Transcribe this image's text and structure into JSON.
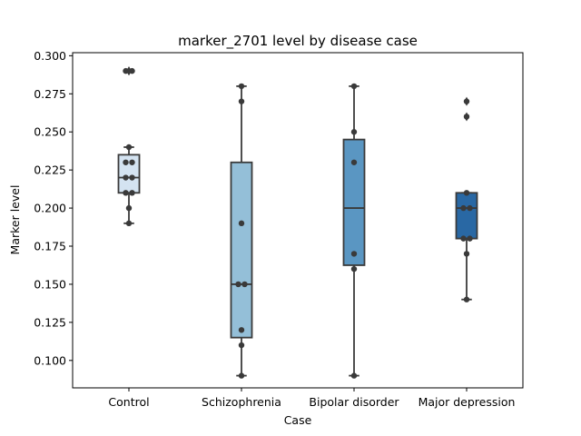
{
  "chart_data": {
    "type": "box",
    "title": "marker_2701 level by disease case",
    "xlabel": "Case",
    "ylabel": "Marker level",
    "ylim": [
      0.082,
      0.302
    ],
    "yticks": [
      "0.100",
      "0.125",
      "0.150",
      "0.175",
      "0.200",
      "0.225",
      "0.250",
      "0.275",
      "0.300"
    ],
    "grid": false,
    "categories": [
      "Control",
      "Schizophrenia",
      "Bipolar disorder",
      "Major depression"
    ],
    "colors": [
      "#d4e3f1",
      "#94bfd8",
      "#5a96c2",
      "#2968a4"
    ],
    "boxes": [
      {
        "category": "Control",
        "whisker_low": 0.19,
        "q1": 0.21,
        "median": 0.22,
        "q3": 0.235,
        "whisker_high": 0.24,
        "outliers": [
          0.29,
          0.29
        ],
        "points": [
          0.29,
          0.29,
          0.24,
          0.23,
          0.23,
          0.22,
          0.22,
          0.21,
          0.21,
          0.2,
          0.19
        ]
      },
      {
        "category": "Schizophrenia",
        "whisker_low": 0.09,
        "q1": 0.115,
        "median": 0.15,
        "q3": 0.23,
        "whisker_high": 0.28,
        "outliers": [],
        "points": [
          0.28,
          0.27,
          0.19,
          0.15,
          0.15,
          0.12,
          0.11,
          0.09
        ]
      },
      {
        "category": "Bipolar disorder",
        "whisker_low": 0.09,
        "q1": 0.1625,
        "median": 0.2,
        "q3": 0.245,
        "whisker_high": 0.28,
        "outliers": [],
        "points": [
          0.28,
          0.25,
          0.23,
          0.17,
          0.16,
          0.09
        ]
      },
      {
        "category": "Major depression",
        "whisker_low": 0.14,
        "q1": 0.18,
        "median": 0.2,
        "q3": 0.21,
        "whisker_high": 0.21,
        "outliers": [
          0.27,
          0.26
        ],
        "points": [
          0.27,
          0.26,
          0.21,
          0.2,
          0.2,
          0.18,
          0.18,
          0.17,
          0.14
        ]
      }
    ]
  }
}
